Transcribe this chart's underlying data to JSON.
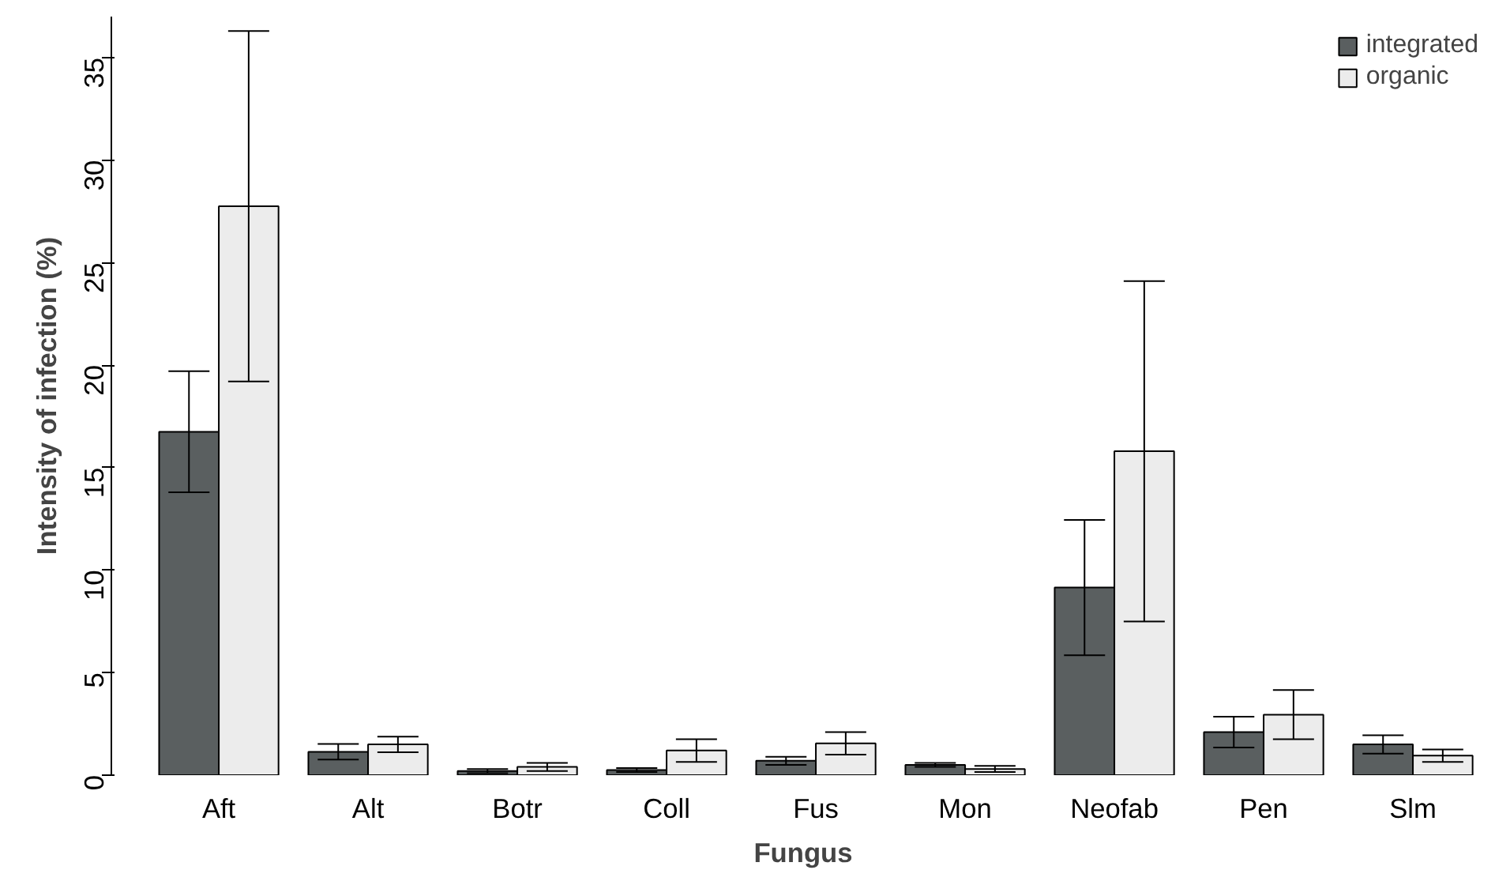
{
  "chart_data": {
    "type": "bar",
    "xlabel": "Fungus",
    "ylabel": "Intensity of infection (%)",
    "categories": [
      "Aft",
      "Alt",
      "Botr",
      "Coll",
      "Fus",
      "Mon",
      "Neofab",
      "Pen",
      "Slm"
    ],
    "series": [
      {
        "name": "integrated",
        "color": "#5a5f60",
        "values": [
          16.75,
          1.14,
          0.2,
          0.25,
          0.7,
          0.5,
          9.15,
          2.1,
          1.5
        ],
        "errors": [
          2.95,
          0.38,
          0.1,
          0.1,
          0.2,
          0.1,
          3.3,
          0.75,
          0.45
        ]
      },
      {
        "name": "organic",
        "color": "#ececec",
        "values": [
          27.75,
          1.5,
          0.4,
          1.2,
          1.55,
          0.3,
          15.8,
          2.95,
          0.95
        ],
        "errors": [
          8.55,
          0.38,
          0.2,
          0.55,
          0.55,
          0.15,
          8.3,
          1.2,
          0.3
        ]
      }
    ],
    "ylim": [
      0,
      37
    ],
    "yticks": [
      0,
      5,
      10,
      15,
      20,
      25,
      30,
      35
    ],
    "grid": false,
    "legend": "top right"
  }
}
